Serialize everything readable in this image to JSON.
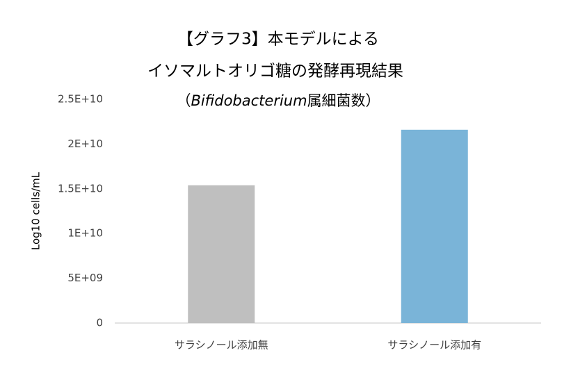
{
  "chart_data": {
    "type": "bar",
    "title": [
      "【グラフ3】本モデルによる",
      "イソマルトオリゴ糖の発酵再現結果"
    ],
    "subtitle": [
      "（",
      "Bifidobacterium",
      "属細菌数）"
    ],
    "y_label": "Log10 cells/mL",
    "categories": [
      "サラシノール添加無",
      "サラシノール添加有"
    ],
    "values": [
      15400000000,
      21600000000
    ],
    "colors": [
      "#bfbfbf",
      "#7ab4d8"
    ],
    "ylim": [
      0,
      25000000000
    ],
    "yticks": [
      0,
      {
        "value": 5000000000,
        "label": "5E+09"
      },
      {
        "value": 10000000000,
        "label": "1E+10"
      },
      {
        "value": 15000000000,
        "label": "1.5E+10"
      },
      {
        "value": 20000000000,
        "label": "2E+10"
      },
      {
        "value": 25000000000,
        "label": "2.5E+10"
      }
    ],
    "grid": false
  }
}
